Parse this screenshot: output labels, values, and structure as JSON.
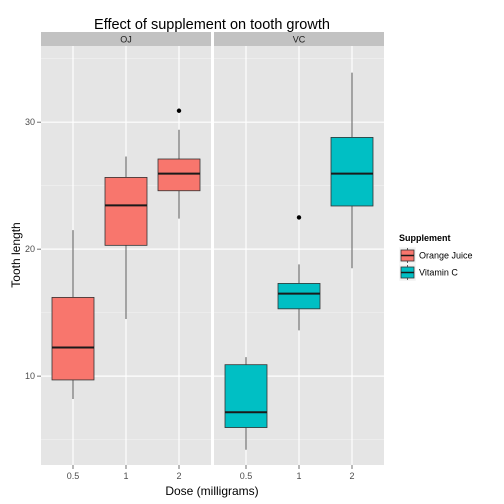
{
  "chart_data": {
    "type": "box",
    "title": "Effect of supplement on tooth growth",
    "xlabel": "Dose (milligrams)",
    "ylabel": "Tooth length",
    "ylim": [
      3,
      36
    ],
    "y_ticks": [
      10,
      20,
      30
    ],
    "categories": [
      "0.5",
      "1",
      "2"
    ],
    "grid": true,
    "legend": {
      "title": "Supplement",
      "position": "right",
      "entries": [
        {
          "label": "Orange Juice",
          "color": "#F8766D"
        },
        {
          "label": "Vitamin C",
          "color": "#00BFC4"
        }
      ]
    },
    "panels": [
      {
        "label": "OJ",
        "color": "#F8766D",
        "boxes": [
          {
            "dose": "0.5",
            "min": 8.2,
            "q1": 9.7,
            "median": 12.25,
            "q3": 16.2,
            "max": 21.5,
            "outliers": []
          },
          {
            "dose": "1",
            "min": 14.5,
            "q1": 20.3,
            "median": 23.45,
            "q3": 25.65,
            "max": 27.3,
            "outliers": []
          },
          {
            "dose": "2",
            "min": 22.4,
            "q1": 24.6,
            "median": 25.95,
            "q3": 27.1,
            "max": 29.4,
            "outliers": [
              30.9
            ]
          }
        ]
      },
      {
        "label": "VC",
        "color": "#00BFC4",
        "boxes": [
          {
            "dose": "0.5",
            "min": 4.2,
            "q1": 5.95,
            "median": 7.15,
            "q3": 10.9,
            "max": 11.5,
            "outliers": []
          },
          {
            "dose": "1",
            "min": 13.6,
            "q1": 15.3,
            "median": 16.5,
            "q3": 17.3,
            "max": 18.8,
            "outliers": [
              22.5
            ]
          },
          {
            "dose": "2",
            "min": 18.5,
            "q1": 23.4,
            "median": 25.95,
            "q3": 28.8,
            "max": 33.9,
            "outliers": []
          }
        ]
      }
    ]
  }
}
